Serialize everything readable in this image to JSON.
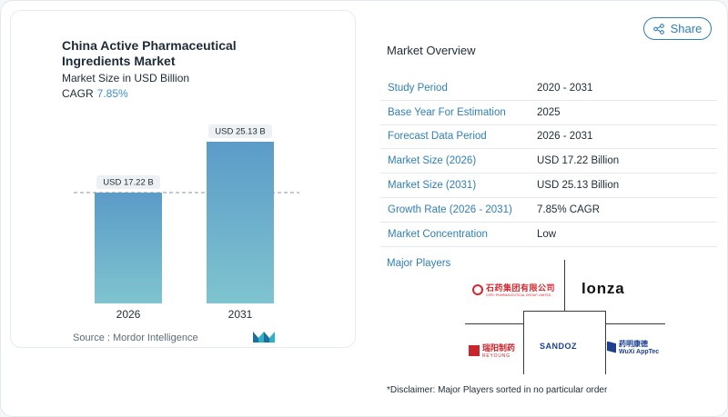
{
  "chart": {
    "title": "China Active Pharmaceutical Ingredients Market",
    "subtitle": "Market Size in USD Billion",
    "cagr_label": "CAGR",
    "cagr_value": "7.85%",
    "source": "Source :  Mordor Intelligence"
  },
  "chart_data": {
    "type": "bar",
    "categories": [
      "2026",
      "2031"
    ],
    "values": [
      17.22,
      25.13
    ],
    "data_labels": [
      "USD 17.22 B",
      "USD 25.13 B"
    ],
    "title": "China Active Pharmaceutical Ingredients Market",
    "subtitle": "Market Size in USD Billion",
    "xlabel": "",
    "ylabel": "",
    "ylim": [
      0,
      25.13
    ],
    "grid": false,
    "reference_line": 17.22,
    "colors": [
      "#5b9bc8",
      "#7fc4cf"
    ]
  },
  "share": {
    "label": "Share"
  },
  "overview": {
    "title": "Market Overview",
    "rows": [
      {
        "label": "Study Period",
        "value": "2020 - 2031"
      },
      {
        "label": "Base Year For Estimation",
        "value": "2025"
      },
      {
        "label": "Forecast Data Period",
        "value": "2026 - 2031"
      },
      {
        "label": "Market Size (2026)",
        "value": "USD 17.22 Billion"
      },
      {
        "label": "Market Size (2031)",
        "value": "USD 25.13 Billion"
      },
      {
        "label": "Growth Rate (2026 - 2031)",
        "value": "7.85% CAGR"
      },
      {
        "label": "Market Concentration",
        "value": "Low"
      }
    ]
  },
  "players": {
    "label": "Major Players",
    "logos": {
      "csp_cn": "石药集团有限公司",
      "csp_en": "CSPC PHARMACEUTICAL GROUP LIMITED",
      "lonza": "lonza",
      "reyoung_cn": "瑞阳制药",
      "reyoung_en": "REYOUNG",
      "sandoz": "SANDOZ",
      "wuxi_cn": "药明康德",
      "wuxi_en": "WuXi AppTec"
    }
  },
  "disclaimer": "*Disclaimer: Major Players sorted in no particular order",
  "colors": {
    "accent": "#2f7fb8",
    "bar_top": "#5b9bc8",
    "bar_bottom": "#7fc4cf"
  }
}
